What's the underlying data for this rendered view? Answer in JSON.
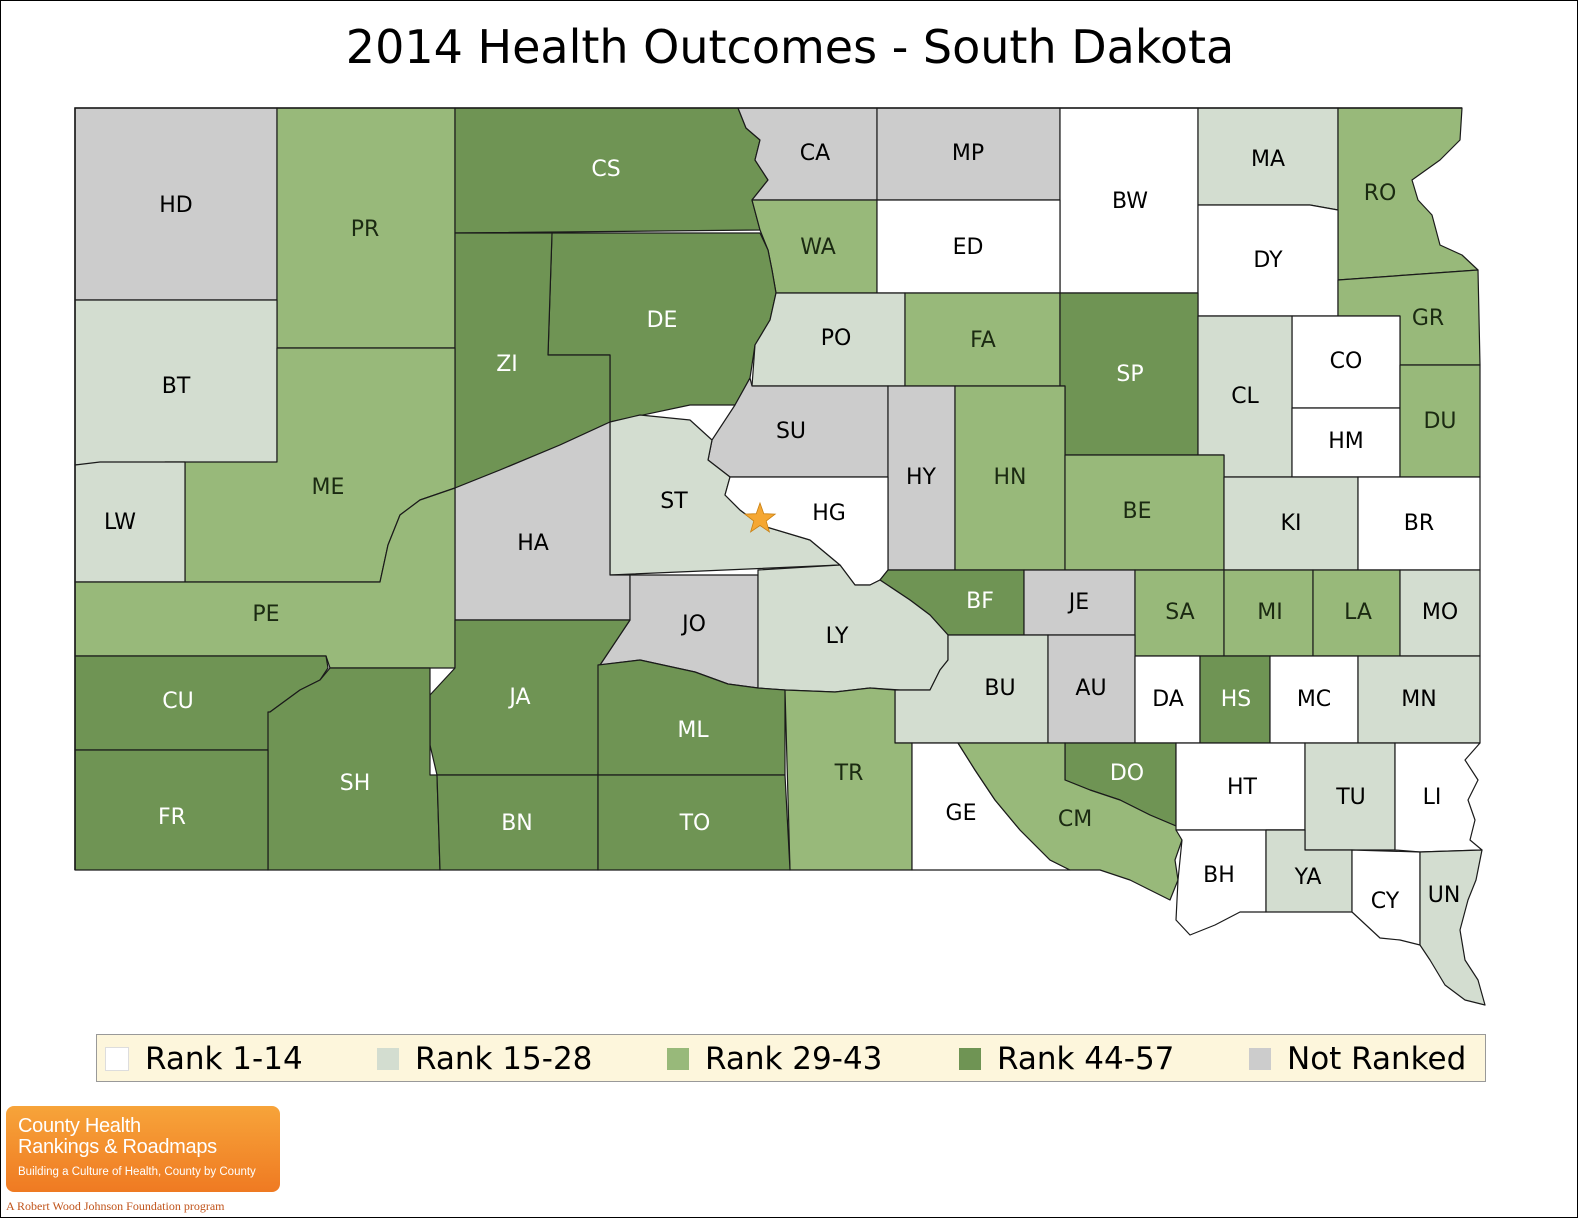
{
  "title": "2014 Health Outcomes - South Dakota",
  "colors": {
    "rank_1_14": "#ffffff",
    "rank_15_28": "#d3ddd0",
    "rank_29_43": "#98b97a",
    "rank_44_57": "#6f9454",
    "not_ranked": "#cccccc",
    "marker": "#f5a732"
  },
  "legend": [
    {
      "label": "Rank 1-14",
      "color": "#ffffff"
    },
    {
      "label": "Rank 15-28",
      "color": "#d3ddd0"
    },
    {
      "label": "Rank 29-43",
      "color": "#98b97a"
    },
    {
      "label": "Rank 44-57",
      "color": "#6f9454"
    },
    {
      "label": "Not Ranked",
      "color": "#cccccc"
    }
  ],
  "counties": [
    {
      "code": "HD",
      "category": "not_ranked"
    },
    {
      "code": "PR",
      "category": "rank_29_43"
    },
    {
      "code": "CS",
      "category": "rank_44_57"
    },
    {
      "code": "CA",
      "category": "not_ranked"
    },
    {
      "code": "MP",
      "category": "not_ranked"
    },
    {
      "code": "BW",
      "category": "rank_1_14"
    },
    {
      "code": "MA",
      "category": "rank_15_28"
    },
    {
      "code": "RO",
      "category": "rank_29_43"
    },
    {
      "code": "WA",
      "category": "rank_29_43"
    },
    {
      "code": "ED",
      "category": "rank_1_14"
    },
    {
      "code": "DY",
      "category": "rank_1_14"
    },
    {
      "code": "BT",
      "category": "rank_15_28"
    },
    {
      "code": "DE",
      "category": "rank_44_57"
    },
    {
      "code": "ZI",
      "category": "rank_44_57"
    },
    {
      "code": "PO",
      "category": "rank_15_28"
    },
    {
      "code": "FA",
      "category": "rank_29_43"
    },
    {
      "code": "SP",
      "category": "rank_44_57"
    },
    {
      "code": "GR",
      "category": "rank_29_43"
    },
    {
      "code": "CO",
      "category": "rank_1_14"
    },
    {
      "code": "CL",
      "category": "rank_15_28"
    },
    {
      "code": "HM",
      "category": "rank_1_14"
    },
    {
      "code": "DU",
      "category": "rank_29_43"
    },
    {
      "code": "ME",
      "category": "rank_29_43"
    },
    {
      "code": "SU",
      "category": "not_ranked"
    },
    {
      "code": "HY",
      "category": "not_ranked"
    },
    {
      "code": "HN",
      "category": "rank_29_43"
    },
    {
      "code": "LW",
      "category": "rank_15_28"
    },
    {
      "code": "ST",
      "category": "rank_15_28"
    },
    {
      "code": "HG",
      "category": "rank_1_14"
    },
    {
      "code": "BE",
      "category": "rank_29_43"
    },
    {
      "code": "KI",
      "category": "rank_15_28"
    },
    {
      "code": "BR",
      "category": "rank_1_14"
    },
    {
      "code": "HA",
      "category": "not_ranked"
    },
    {
      "code": "PE",
      "category": "rank_29_43"
    },
    {
      "code": "BF",
      "category": "rank_44_57"
    },
    {
      "code": "JE",
      "category": "not_ranked"
    },
    {
      "code": "SA",
      "category": "rank_29_43"
    },
    {
      "code": "MI",
      "category": "rank_29_43"
    },
    {
      "code": "LA",
      "category": "rank_29_43"
    },
    {
      "code": "MO",
      "category": "rank_15_28"
    },
    {
      "code": "JO",
      "category": "not_ranked"
    },
    {
      "code": "LY",
      "category": "rank_15_28"
    },
    {
      "code": "CU",
      "category": "rank_44_57"
    },
    {
      "code": "JA",
      "category": "rank_44_57"
    },
    {
      "code": "BU",
      "category": "rank_15_28"
    },
    {
      "code": "AU",
      "category": "not_ranked"
    },
    {
      "code": "DA",
      "category": "rank_1_14"
    },
    {
      "code": "HS",
      "category": "rank_44_57"
    },
    {
      "code": "MC",
      "category": "rank_1_14"
    },
    {
      "code": "MN",
      "category": "rank_15_28"
    },
    {
      "code": "ML",
      "category": "rank_44_57"
    },
    {
      "code": "SH",
      "category": "rank_44_57"
    },
    {
      "code": "TR",
      "category": "rank_29_43"
    },
    {
      "code": "DO",
      "category": "rank_44_57"
    },
    {
      "code": "FR",
      "category": "rank_44_57"
    },
    {
      "code": "BN",
      "category": "rank_44_57"
    },
    {
      "code": "TO",
      "category": "rank_44_57"
    },
    {
      "code": "GE",
      "category": "rank_1_14"
    },
    {
      "code": "CM",
      "category": "rank_29_43"
    },
    {
      "code": "HT",
      "category": "rank_1_14"
    },
    {
      "code": "TU",
      "category": "rank_15_28"
    },
    {
      "code": "LI",
      "category": "rank_1_14"
    },
    {
      "code": "BH",
      "category": "rank_1_14"
    },
    {
      "code": "YA",
      "category": "rank_15_28"
    },
    {
      "code": "CY",
      "category": "rank_1_14"
    },
    {
      "code": "UN",
      "category": "rank_15_28"
    }
  ],
  "logo": {
    "line1": "County Health",
    "line2": "Rankings & Roadmaps",
    "tagline": "Building a Culture of Health, County by County",
    "sub": "A Robert Wood Johnson Foundation program"
  }
}
